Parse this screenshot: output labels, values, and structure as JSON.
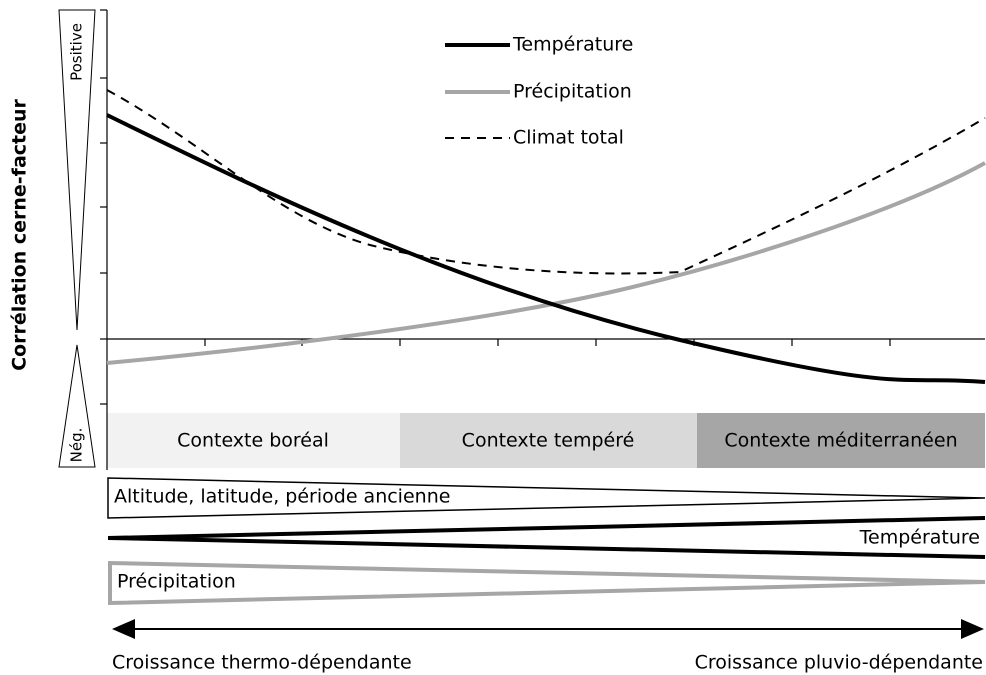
{
  "legend": [
    "Température",
    "Précipitation",
    "Climat total"
  ],
  "y_axis_label": "Corrélation cerne-facteur",
  "positive_label": "Positive",
  "negative_label": "Nég.",
  "contexts": [
    "Contexte boréal",
    "Contexte tempéré",
    "Contexte méditerranéen"
  ],
  "gradients": [
    "Altitude, latitude, période ancienne",
    "Température",
    "Précipitation"
  ],
  "growth": [
    "Croissance thermo-dépendante",
    "Croissance pluvio-dépendante"
  ]
}
